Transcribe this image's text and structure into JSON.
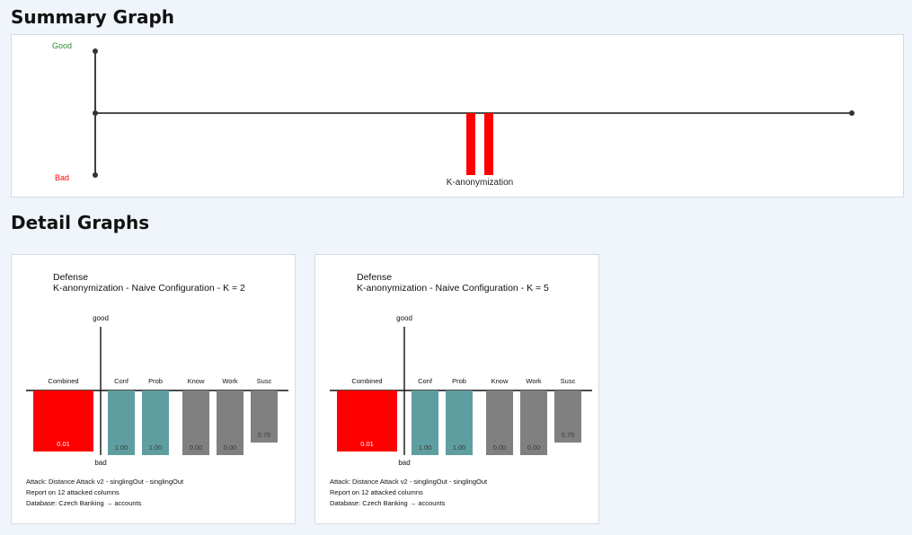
{
  "summary": {
    "title": "Summary Graph",
    "good_label": "Good",
    "bad_label": "Bad",
    "good_color": "#2e8b2e",
    "bad_color": "#ff0000",
    "group_label": "K-anonymization"
  },
  "detail": {
    "title": "Detail Graphs"
  },
  "chart_data": [
    {
      "type": "bar",
      "title": "Summary Graph",
      "categories": [
        "K-anonymization"
      ],
      "series": [
        {
          "values": [
            -1.0
          ]
        },
        {
          "values": [
            -1.0
          ]
        }
      ],
      "ylim": [
        -1,
        1
      ],
      "colors": [
        "#ff0000",
        "#ff0000"
      ]
    },
    {
      "type": "bar",
      "title": "Defense",
      "subtitle": "K-anonymization - Naive Configuration - K = 2",
      "top_label": "good",
      "bottom_label": "bad",
      "categories": [
        "Combined",
        "Conf",
        "Prob",
        "Know",
        "Work",
        "Susc"
      ],
      "values": [
        0.01,
        1.0,
        1.0,
        0.0,
        0.0,
        0.75
      ],
      "value_labels": [
        "0.01",
        "1.00",
        "1.00",
        "0.00",
        "0.00",
        "0.75"
      ],
      "colors": [
        "#ff0000",
        "#5f9ea0",
        "#5f9ea0",
        "#808080",
        "#808080",
        "#808080"
      ],
      "footer": [
        "Attack: Distance Attack v2 - singlingOut - singlingOut",
        "Report on 12 attacked columns",
        "Database: Czech Banking → accounts"
      ]
    },
    {
      "type": "bar",
      "title": "Defense",
      "subtitle": "K-anonymization - Naive Configuration - K = 5",
      "top_label": "good",
      "bottom_label": "bad",
      "categories": [
        "Combined",
        "Conf",
        "Prob",
        "Know",
        "Work",
        "Susc"
      ],
      "values": [
        0.01,
        1.0,
        1.0,
        0.0,
        0.0,
        0.75
      ],
      "value_labels": [
        "0.01",
        "1.00",
        "1.00",
        "0.00",
        "0.00",
        "0.75"
      ],
      "colors": [
        "#ff0000",
        "#5f9ea0",
        "#5f9ea0",
        "#808080",
        "#808080",
        "#808080"
      ],
      "footer": [
        "Attack: Distance Attack v2 - singlingOut - singlingOut",
        "Report on 12 attacked columns",
        "Database: Czech Banking → accounts"
      ]
    }
  ]
}
